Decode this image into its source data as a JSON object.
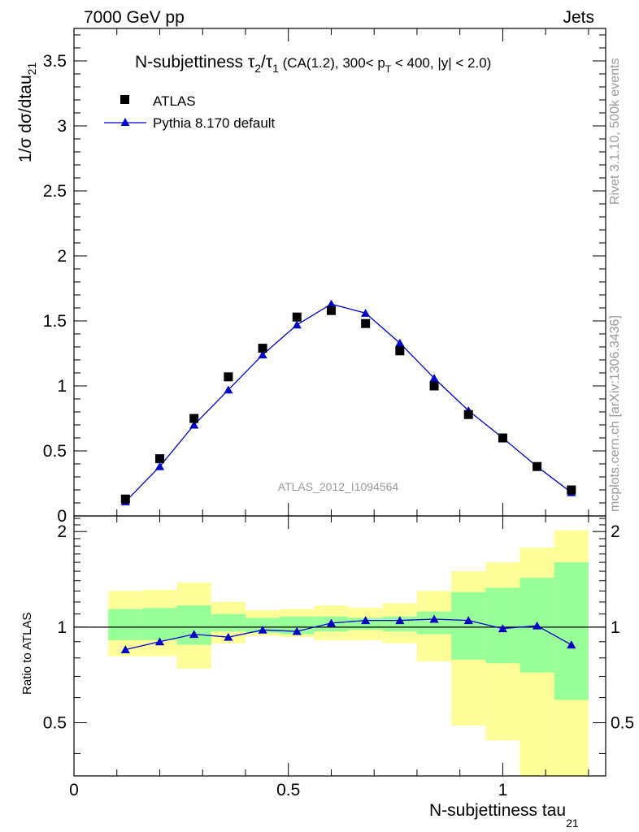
{
  "header": {
    "left": "7000 GeV pp",
    "right": "Jets",
    "rivet_note": "Rivet 3.1.10,  500k events",
    "mcplots_note": "mcplots.cern.ch [arXiv:1306.3436]",
    "analysis_id": "ATLAS_2012_I1094564"
  },
  "title": {
    "prefix": "N-subjettiness ",
    "tau": "τ",
    "sub2": "2",
    "slash": "/",
    "sub1": "1",
    "cuts_a": " (CA(1.2), 300< p",
    "sub_T": "T",
    "cuts_b": " < 400, |y| < 2.0)"
  },
  "axes": {
    "ylabel_main": "1/σ dσ/dtau",
    "ylabel_main_sub": "21",
    "ylabel_ratio": "Ratio to ATLAS",
    "xlabel": "N-subjettiness tau",
    "xlabel_sub": "21"
  },
  "legend": {
    "data_label": "ATLAS",
    "mc_label": "Pythia 8.170 default"
  },
  "colors": {
    "mc_line": "#0000cc",
    "band_inner": "#99ff99",
    "band_outer": "#ffff99",
    "data_marker": "#000000"
  },
  "chart_data": {
    "type": "scatter",
    "x": [
      0.12,
      0.2,
      0.28,
      0.36,
      0.44,
      0.52,
      0.6,
      0.68,
      0.76,
      0.84,
      0.92,
      1.0,
      1.08,
      1.16
    ],
    "bin_edges": [
      0.08,
      0.16,
      0.24,
      0.32,
      0.4,
      0.48,
      0.56,
      0.64,
      0.72,
      0.8,
      0.88,
      0.96,
      1.04,
      1.12,
      1.2
    ],
    "series": [
      {
        "name": "ATLAS",
        "values": [
          0.13,
          0.44,
          0.75,
          1.07,
          1.29,
          1.53,
          1.58,
          1.48,
          1.27,
          1.0,
          0.78,
          0.6,
          0.38,
          0.2
        ]
      },
      {
        "name": "Pythia 8.170 default",
        "values": [
          0.11,
          0.38,
          0.7,
          0.97,
          1.24,
          1.47,
          1.63,
          1.56,
          1.33,
          1.06,
          0.81,
          0.6,
          0.38,
          0.18
        ]
      }
    ],
    "ratio": {
      "values": [
        0.85,
        0.9,
        0.95,
        0.93,
        0.98,
        0.97,
        1.03,
        1.05,
        1.05,
        1.06,
        1.05,
        0.99,
        1.01,
        0.88
      ],
      "inner_band": [
        [
          0.91,
          1.14
        ],
        [
          0.91,
          1.15
        ],
        [
          0.88,
          1.17
        ],
        [
          0.97,
          1.1
        ],
        [
          0.96,
          1.07
        ],
        [
          0.95,
          1.08
        ],
        [
          0.97,
          1.08
        ],
        [
          0.98,
          1.07
        ],
        [
          0.97,
          1.08
        ],
        [
          0.95,
          1.12
        ],
        [
          0.79,
          1.29
        ],
        [
          0.77,
          1.33
        ],
        [
          0.72,
          1.43
        ],
        [
          0.59,
          1.6
        ]
      ],
      "outer_band": [
        [
          0.81,
          1.3
        ],
        [
          0.81,
          1.31
        ],
        [
          0.74,
          1.38
        ],
        [
          0.89,
          1.2
        ],
        [
          0.94,
          1.13
        ],
        [
          0.93,
          1.14
        ],
        [
          0.91,
          1.17
        ],
        [
          0.91,
          1.15
        ],
        [
          0.89,
          1.19
        ],
        [
          0.78,
          1.3
        ],
        [
          0.49,
          1.5
        ],
        [
          0.44,
          1.6
        ],
        [
          0.34,
          1.78
        ],
        [
          0.34,
          2.02
        ]
      ]
    },
    "xlim": [
      0,
      1.24
    ],
    "ylim_main": [
      0,
      3.75
    ],
    "ylim_ratio": [
      0.34,
      2.24
    ],
    "x_ticks": [
      0,
      0.5,
      1
    ],
    "x_tick_labels": [
      "0",
      "0.5",
      "1"
    ],
    "y_ticks_main": [
      0,
      0.5,
      1,
      1.5,
      2,
      2.5,
      3,
      3.5
    ],
    "y_tick_labels_main": [
      "0",
      "0.5",
      "1",
      "1.5",
      "2",
      "2.5",
      "3",
      "3.5"
    ],
    "y_ticks_ratio": [
      0.5,
      1,
      2
    ],
    "y_tick_labels_ratio": [
      "0.5",
      "1",
      "2"
    ],
    "legend_position": "top-left",
    "grid": false
  }
}
